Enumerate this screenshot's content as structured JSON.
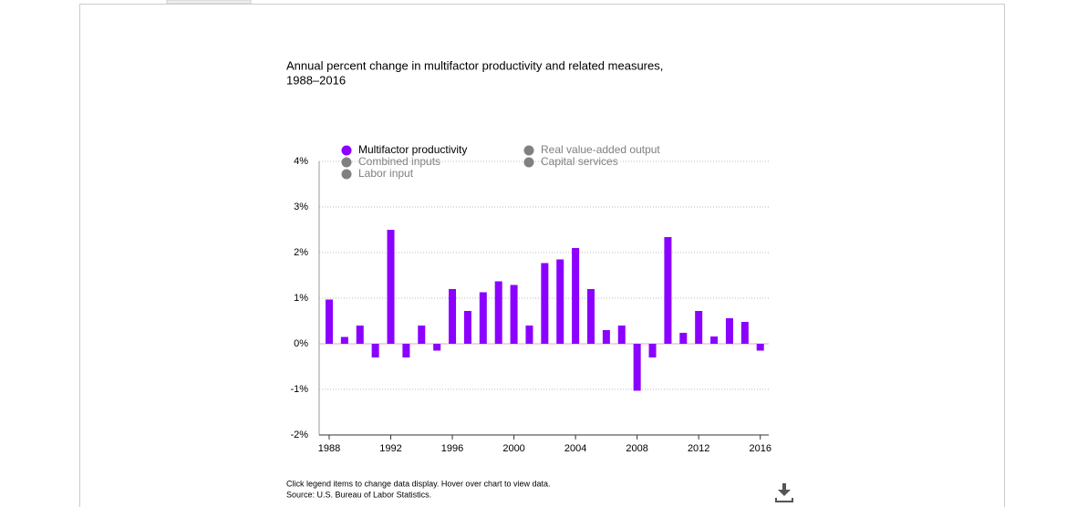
{
  "chart_data": {
    "type": "bar",
    "title": [
      "Annual percent change in multifactor productivity and related measures,",
      "1988–2016"
    ],
    "x": [
      1988,
      1989,
      1990,
      1991,
      1992,
      1993,
      1994,
      1995,
      1996,
      1997,
      1998,
      1999,
      2000,
      2001,
      2002,
      2003,
      2004,
      2005,
      2006,
      2007,
      2008,
      2009,
      2010,
      2011,
      2012,
      2013,
      2014,
      2015,
      2016
    ],
    "series": [
      {
        "name": "Multifactor productivity",
        "color": "#8b00ff",
        "values": [
          0.97,
          0.15,
          0.4,
          -0.3,
          2.5,
          -0.3,
          0.4,
          -0.15,
          1.2,
          0.72,
          1.13,
          1.37,
          1.29,
          0.4,
          1.77,
          1.85,
          2.1,
          1.2,
          0.3,
          0.4,
          -1.03,
          -0.3,
          2.34,
          0.24,
          0.72,
          0.16,
          0.56,
          0.48,
          -0.15
        ]
      }
    ],
    "hidden_series": [
      {
        "name": "Real value-added output",
        "color": "#808080"
      },
      {
        "name": "Combined inputs",
        "color": "#808080"
      },
      {
        "name": "Capital services",
        "color": "#808080"
      },
      {
        "name": "Labor input",
        "color": "#808080"
      }
    ],
    "xlim": [
      1987.35,
      2016.55
    ],
    "xticks": [
      1988,
      1992,
      1996,
      2000,
      2004,
      2008,
      2012,
      2016
    ],
    "ylim": [
      -2,
      4
    ],
    "yticks": [
      {
        "value": -2,
        "label": "-2%"
      },
      {
        "value": -1,
        "label": "-1%"
      },
      {
        "value": 0,
        "label": "0%"
      },
      {
        "value": 1,
        "label": "1%"
      },
      {
        "value": 2,
        "label": "2%"
      },
      {
        "value": 3,
        "label": "3%"
      },
      {
        "value": 4,
        "label": "4%"
      }
    ],
    "grid": true,
    "notes": [
      "Click legend items to change data display. Hover over chart to view data.",
      "Source: U.S. Bureau of Labor Statistics."
    ]
  }
}
